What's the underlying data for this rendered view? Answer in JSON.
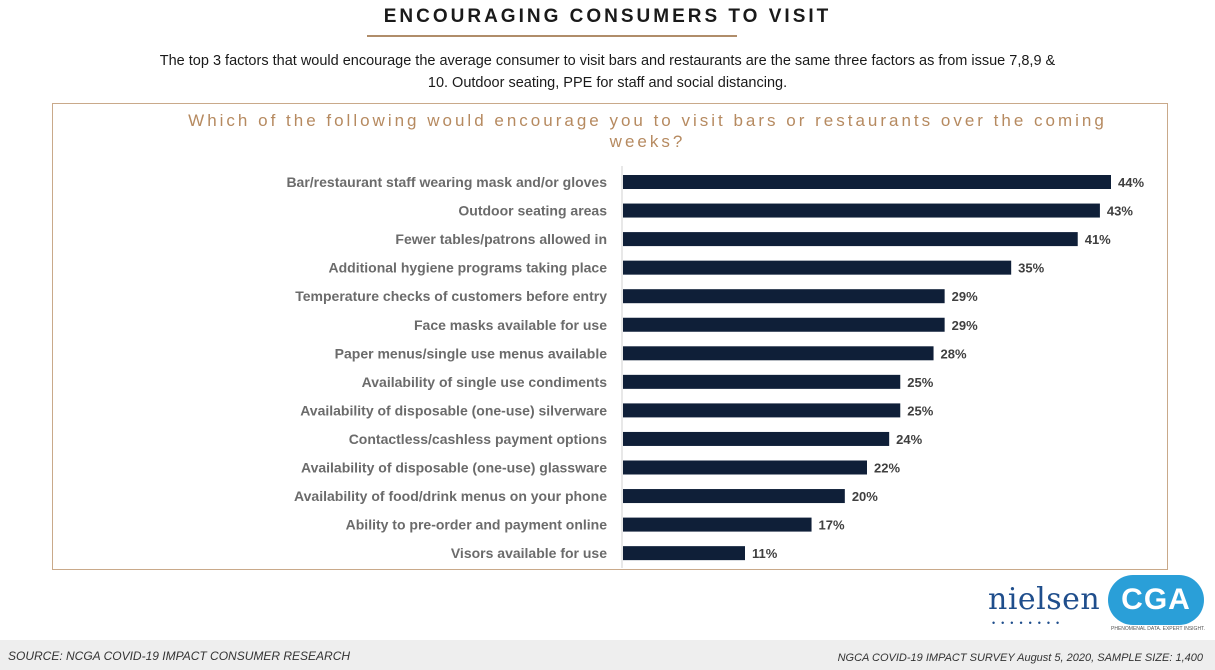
{
  "header": {
    "title": "ENCOURAGING CONSUMERS TO VISIT",
    "subtitle": "The top 3 factors that would encourage the average consumer to visit bars and restaurants are the same three factors as from issue 7,8,9 & 10. Outdoor seating, PPE for staff and social distancing."
  },
  "chart_data": {
    "type": "bar",
    "orientation": "horizontal",
    "title": "Which of the following would encourage you to visit bars or restaurants over the coming weeks?",
    "categories": [
      "Bar/restaurant staff wearing mask and/or gloves",
      "Outdoor seating areas",
      "Fewer tables/patrons allowed in",
      "Additional hygiene programs taking place",
      "Temperature checks of customers before entry",
      "Face masks available for use",
      "Paper menus/single use menus available",
      "Availability of single use condiments",
      "Availability of disposable (one-use) silverware",
      "Contactless/cashless payment options",
      "Availability of disposable (one-use) glassware",
      "Availability of food/drink menus on your phone",
      "Ability to pre-order and payment online",
      "Visors available for use"
    ],
    "values": [
      44,
      43,
      41,
      35,
      29,
      29,
      28,
      25,
      25,
      24,
      22,
      20,
      17,
      11
    ],
    "labels": [
      "44%",
      "43%",
      "41%",
      "35%",
      "29%",
      "29%",
      "28%",
      "25%",
      "25%",
      "24%",
      "22%",
      "20%",
      "17%",
      "11%"
    ],
    "xlim": [
      0,
      44
    ],
    "bar_color": "#0f1f38",
    "grid": false,
    "legend": "none"
  },
  "footer": {
    "source": "SOURCE: NCGA COVID-19 IMPACT CONSUMER RESEARCH",
    "survey": "NGCA COVID-19 IMPACT SURVEY August 5, 2020, SAMPLE SIZE: 1,400"
  },
  "logos": {
    "nielsen": "nielsen",
    "cga": "CGA",
    "cga_tagline": "PHENOMENAL DATA. EXPERT INSIGHT."
  }
}
